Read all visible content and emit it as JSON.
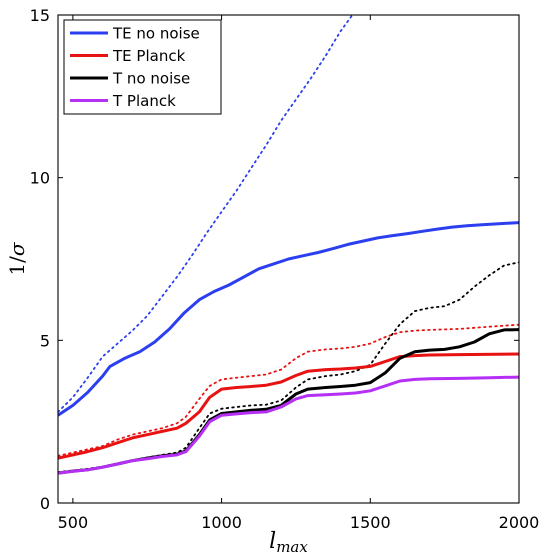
{
  "chart_data": {
    "type": "line",
    "xlabel": "l_max",
    "ylabel": "1/σ",
    "xlim": [
      450,
      2000
    ],
    "ylim": [
      0,
      15
    ],
    "xticks": [
      500,
      1000,
      1500,
      2000
    ],
    "yticks": [
      0,
      5,
      10,
      15
    ],
    "grid": false,
    "legend_position": "top-left",
    "series": [
      {
        "name": "TE no noise",
        "color": "#2b3ff0",
        "style": "solid",
        "points": [
          [
            450,
            2.7
          ],
          [
            500,
            3.0
          ],
          [
            550,
            3.4
          ],
          [
            600,
            3.9
          ],
          [
            625,
            4.2
          ],
          [
            675,
            4.45
          ],
          [
            725,
            4.65
          ],
          [
            775,
            4.95
          ],
          [
            825,
            5.35
          ],
          [
            875,
            5.85
          ],
          [
            925,
            6.25
          ],
          [
            975,
            6.5
          ],
          [
            1025,
            6.7
          ],
          [
            1075,
            6.95
          ],
          [
            1125,
            7.2
          ],
          [
            1175,
            7.35
          ],
          [
            1225,
            7.5
          ],
          [
            1275,
            7.6
          ],
          [
            1325,
            7.7
          ],
          [
            1375,
            7.82
          ],
          [
            1425,
            7.95
          ],
          [
            1475,
            8.05
          ],
          [
            1525,
            8.15
          ],
          [
            1575,
            8.22
          ],
          [
            1625,
            8.28
          ],
          [
            1675,
            8.35
          ],
          [
            1725,
            8.42
          ],
          [
            1775,
            8.48
          ],
          [
            1825,
            8.52
          ],
          [
            1875,
            8.55
          ],
          [
            1925,
            8.58
          ],
          [
            2000,
            8.62
          ]
        ]
      },
      {
        "name": "TE Planck",
        "color": "#e81212",
        "style": "solid",
        "points": [
          [
            450,
            1.38
          ],
          [
            500,
            1.48
          ],
          [
            550,
            1.58
          ],
          [
            600,
            1.7
          ],
          [
            650,
            1.85
          ],
          [
            700,
            2.0
          ],
          [
            750,
            2.1
          ],
          [
            800,
            2.2
          ],
          [
            850,
            2.3
          ],
          [
            880,
            2.45
          ],
          [
            925,
            2.8
          ],
          [
            960,
            3.25
          ],
          [
            1000,
            3.5
          ],
          [
            1050,
            3.55
          ],
          [
            1100,
            3.58
          ],
          [
            1150,
            3.62
          ],
          [
            1200,
            3.72
          ],
          [
            1250,
            3.92
          ],
          [
            1290,
            4.05
          ],
          [
            1350,
            4.1
          ],
          [
            1400,
            4.12
          ],
          [
            1450,
            4.15
          ],
          [
            1500,
            4.2
          ],
          [
            1550,
            4.35
          ],
          [
            1600,
            4.5
          ],
          [
            1650,
            4.53
          ],
          [
            1700,
            4.55
          ],
          [
            1800,
            4.56
          ],
          [
            2000,
            4.58
          ]
        ]
      },
      {
        "name": "T no noise",
        "color": "#000000",
        "style": "solid",
        "points": [
          [
            450,
            0.92
          ],
          [
            500,
            0.98
          ],
          [
            550,
            1.02
          ],
          [
            600,
            1.1
          ],
          [
            650,
            1.2
          ],
          [
            700,
            1.3
          ],
          [
            750,
            1.38
          ],
          [
            800,
            1.45
          ],
          [
            850,
            1.5
          ],
          [
            880,
            1.6
          ],
          [
            925,
            2.1
          ],
          [
            960,
            2.55
          ],
          [
            1000,
            2.75
          ],
          [
            1050,
            2.8
          ],
          [
            1100,
            2.85
          ],
          [
            1150,
            2.88
          ],
          [
            1200,
            3.0
          ],
          [
            1250,
            3.35
          ],
          [
            1290,
            3.5
          ],
          [
            1350,
            3.55
          ],
          [
            1400,
            3.58
          ],
          [
            1450,
            3.62
          ],
          [
            1500,
            3.7
          ],
          [
            1550,
            4.0
          ],
          [
            1600,
            4.45
          ],
          [
            1650,
            4.65
          ],
          [
            1700,
            4.7
          ],
          [
            1750,
            4.72
          ],
          [
            1800,
            4.8
          ],
          [
            1850,
            4.95
          ],
          [
            1900,
            5.2
          ],
          [
            1950,
            5.32
          ],
          [
            2000,
            5.33
          ]
        ]
      },
      {
        "name": "T Planck",
        "color": "#b52ff5",
        "style": "solid",
        "points": [
          [
            450,
            0.92
          ],
          [
            500,
            0.97
          ],
          [
            550,
            1.02
          ],
          [
            600,
            1.1
          ],
          [
            650,
            1.2
          ],
          [
            700,
            1.3
          ],
          [
            750,
            1.36
          ],
          [
            800,
            1.43
          ],
          [
            850,
            1.48
          ],
          [
            880,
            1.58
          ],
          [
            925,
            2.05
          ],
          [
            960,
            2.5
          ],
          [
            1000,
            2.7
          ],
          [
            1050,
            2.74
          ],
          [
            1100,
            2.78
          ],
          [
            1150,
            2.8
          ],
          [
            1200,
            2.95
          ],
          [
            1250,
            3.2
          ],
          [
            1290,
            3.3
          ],
          [
            1350,
            3.33
          ],
          [
            1400,
            3.35
          ],
          [
            1450,
            3.38
          ],
          [
            1500,
            3.45
          ],
          [
            1550,
            3.6
          ],
          [
            1600,
            3.75
          ],
          [
            1650,
            3.8
          ],
          [
            1700,
            3.82
          ],
          [
            1800,
            3.83
          ],
          [
            1900,
            3.85
          ],
          [
            2000,
            3.87
          ]
        ]
      },
      {
        "color": "#2b3ff0",
        "style": "dotted",
        "points": [
          [
            450,
            2.8
          ],
          [
            500,
            3.25
          ],
          [
            550,
            3.85
          ],
          [
            600,
            4.5
          ],
          [
            650,
            4.9
          ],
          [
            700,
            5.3
          ],
          [
            750,
            5.75
          ],
          [
            800,
            6.35
          ],
          [
            850,
            6.95
          ],
          [
            900,
            7.6
          ],
          [
            950,
            8.3
          ],
          [
            1000,
            8.95
          ],
          [
            1050,
            9.6
          ],
          [
            1100,
            10.3
          ],
          [
            1150,
            11.0
          ],
          [
            1200,
            11.75
          ],
          [
            1250,
            12.4
          ],
          [
            1300,
            13.05
          ],
          [
            1350,
            13.75
          ],
          [
            1400,
            14.5
          ],
          [
            1440,
            15.0
          ]
        ]
      },
      {
        "color": "#e81212",
        "style": "dotted",
        "points": [
          [
            450,
            1.45
          ],
          [
            500,
            1.55
          ],
          [
            550,
            1.65
          ],
          [
            600,
            1.75
          ],
          [
            650,
            1.95
          ],
          [
            700,
            2.1
          ],
          [
            750,
            2.2
          ],
          [
            800,
            2.3
          ],
          [
            850,
            2.45
          ],
          [
            880,
            2.65
          ],
          [
            925,
            3.2
          ],
          [
            960,
            3.6
          ],
          [
            1000,
            3.8
          ],
          [
            1050,
            3.85
          ],
          [
            1100,
            3.9
          ],
          [
            1150,
            3.95
          ],
          [
            1200,
            4.1
          ],
          [
            1250,
            4.45
          ],
          [
            1290,
            4.65
          ],
          [
            1350,
            4.72
          ],
          [
            1400,
            4.75
          ],
          [
            1450,
            4.8
          ],
          [
            1500,
            4.9
          ],
          [
            1550,
            5.1
          ],
          [
            1600,
            5.25
          ],
          [
            1650,
            5.3
          ],
          [
            1700,
            5.32
          ],
          [
            1800,
            5.35
          ],
          [
            1900,
            5.42
          ],
          [
            2000,
            5.48
          ]
        ]
      },
      {
        "color": "#000000",
        "style": "dotted",
        "points": [
          [
            450,
            0.95
          ],
          [
            500,
            1.0
          ],
          [
            550,
            1.05
          ],
          [
            600,
            1.12
          ],
          [
            650,
            1.22
          ],
          [
            700,
            1.32
          ],
          [
            750,
            1.4
          ],
          [
            800,
            1.48
          ],
          [
            850,
            1.55
          ],
          [
            880,
            1.7
          ],
          [
            925,
            2.3
          ],
          [
            960,
            2.75
          ],
          [
            1000,
            2.9
          ],
          [
            1050,
            2.95
          ],
          [
            1100,
            3.0
          ],
          [
            1150,
            3.02
          ],
          [
            1200,
            3.15
          ],
          [
            1250,
            3.55
          ],
          [
            1290,
            3.8
          ],
          [
            1350,
            3.9
          ],
          [
            1400,
            3.95
          ],
          [
            1450,
            4.05
          ],
          [
            1500,
            4.25
          ],
          [
            1550,
            4.9
          ],
          [
            1600,
            5.5
          ],
          [
            1650,
            5.9
          ],
          [
            1700,
            6.0
          ],
          [
            1750,
            6.05
          ],
          [
            1800,
            6.25
          ],
          [
            1850,
            6.65
          ],
          [
            1900,
            7.0
          ],
          [
            1950,
            7.3
          ],
          [
            2000,
            7.4
          ]
        ]
      }
    ]
  }
}
